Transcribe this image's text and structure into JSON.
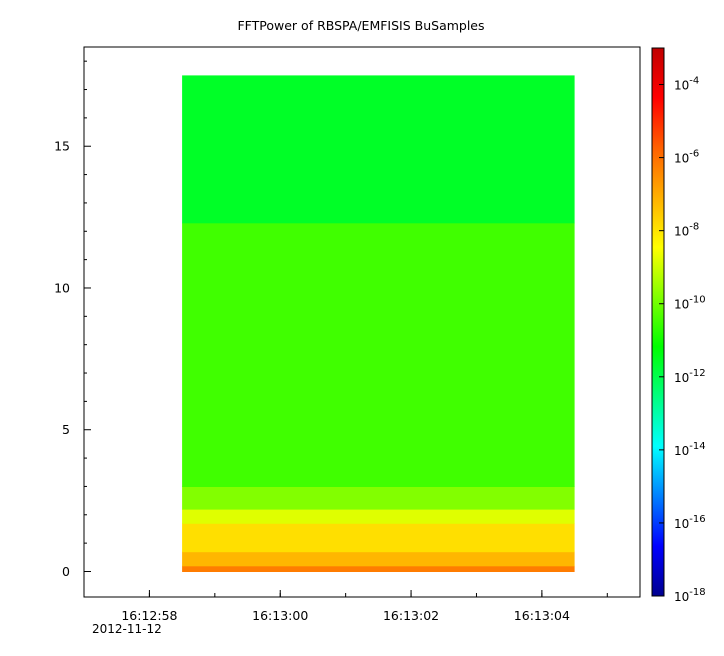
{
  "chart_data": {
    "type": "heatmap",
    "title": "FFTPower of RBSPA/EMFISIS  BuSamples",
    "xlabel": "",
    "ylabel": "",
    "x_axis": {
      "range": [
        "16:12:57",
        "16:13:05.5"
      ],
      "tick_labels": [
        "16:12:58",
        "16:13:00",
        "16:13:02",
        "16:13:04"
      ],
      "date_label": "2012-11-12",
      "data_extent": [
        "16:12:58.5",
        "16:13:04.5"
      ]
    },
    "y_axis": {
      "range": [
        -0.9,
        18.5
      ],
      "ticks": [
        0,
        5,
        10,
        15
      ],
      "data_extent": [
        0,
        17.5
      ]
    },
    "colorbar": {
      "scale": "log",
      "range": [
        1e-18,
        0.001
      ],
      "ticks": [
        {
          "base": "10",
          "exp": "-18",
          "value": 1e-18
        },
        {
          "base": "10",
          "exp": "-16",
          "value": 1e-16
        },
        {
          "base": "10",
          "exp": "-14",
          "value": 1e-14
        },
        {
          "base": "10",
          "exp": "-12",
          "value": 1e-12
        },
        {
          "base": "10",
          "exp": "-10",
          "value": 1e-10
        },
        {
          "base": "10",
          "exp": "-8",
          "value": 1e-08
        },
        {
          "base": "10",
          "exp": "-6",
          "value": 1e-06
        },
        {
          "base": "10",
          "exp": "-4",
          "value": 0.0001
        }
      ],
      "colors": [
        "#00008f",
        "#0000ff",
        "#0080ff",
        "#00ffff",
        "#00ff80",
        "#00ff00",
        "#80ff00",
        "#ffff00",
        "#ffb000",
        "#ff6000",
        "#ff0000",
        "#c00000"
      ]
    },
    "bands": [
      {
        "y_from": 0.0,
        "y_to": 0.2,
        "log_power": -6.2
      },
      {
        "y_from": 0.2,
        "y_to": 0.7,
        "log_power": -7.2
      },
      {
        "y_from": 0.7,
        "y_to": 1.7,
        "log_power": -7.9
      },
      {
        "y_from": 1.7,
        "y_to": 2.2,
        "log_power": -8.8
      },
      {
        "y_from": 2.2,
        "y_to": 3.0,
        "log_power": -9.8
      },
      {
        "y_from": 3.0,
        "y_to": 12.3,
        "log_power": -10.5
      },
      {
        "y_from": 12.3,
        "y_to": 17.5,
        "log_power": -11.6
      }
    ],
    "grid": false,
    "legend": "none"
  }
}
